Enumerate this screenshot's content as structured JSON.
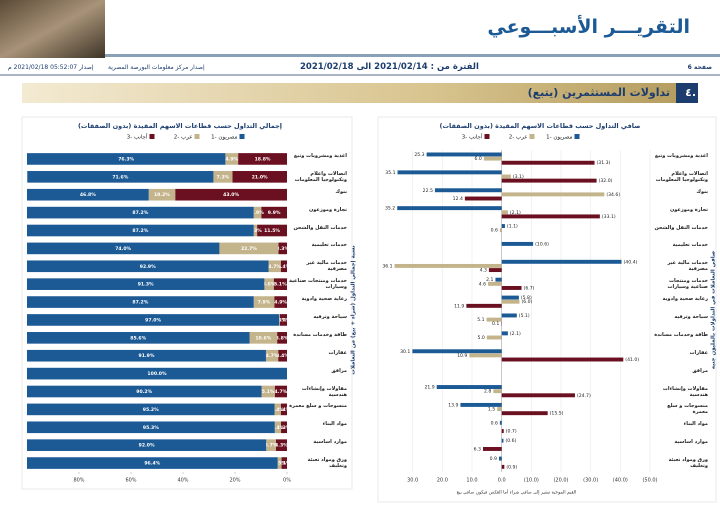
{
  "header": {
    "title": "التقريـــر الأسبـــوعي",
    "issuer": "إصدار مركز معلومات البورصة المصرية",
    "period": "الفترة من : 2021/02/14 الى 2021/02/18",
    "issued": "إصدار 05:52:07 2021/02/18 م",
    "page": "صفحة 6"
  },
  "section": {
    "number": "٤.",
    "title": "تداولات المستثمرين (يتبع)"
  },
  "chart_data": [
    {
      "type": "bar",
      "orientation": "horizontal",
      "stacked": true,
      "title": "إجمالي التداول حسب قطاعات الاسهم المقيدة (بدون الصفقات)",
      "ylabel": "نسبة إجمالي التداول (شراء + بيع) من التعاملات",
      "categories": [
        "اغذية ومشروبات وتبغ",
        "اتصالات واعلام وتكنولوجيا المعلومات",
        "بنوك",
        "تجارة وموزعون",
        "خدمات النقل والشحن",
        "خدمات تعليمية",
        "خدمات مالية غير مصرفية",
        "خدمات ومنتجات صناعية وسيارات",
        "رعاية صحية وادوية",
        "سياحة وترفيه",
        "طاقة وخدمات مساندة",
        "عقارات",
        "مرافق",
        "مقاولات وإنشاءات هندسية",
        "منسوجات و سلع معمرة",
        "مواد البناء",
        "موارد اساسية",
        "ورق ومواد تعبئة وتغليف"
      ],
      "series": [
        {
          "name": "مصريون -1",
          "color": "#1c5a96",
          "values": [
            76.3,
            71.6,
            46.8,
            87.2,
            87.2,
            74.0,
            92.9,
            91.3,
            87.2,
            97.0,
            85.6,
            91.9,
            100.0,
            90.2,
            95.2,
            95.3,
            92.0,
            96.4
          ],
          "value_labels": [
            "76.3%",
            "71.6%",
            "46.8%",
            "87.2%",
            "87.2%",
            "74.0%",
            "92.9%",
            "91.3%",
            "87.2%",
            "97.0%",
            "85.6%",
            "91.9%",
            "100.0%",
            "90.2%",
            "95.2%",
            "95.3%",
            "92.0%",
            "96.4%"
          ]
        },
        {
          "name": "عرب -2",
          "color": "#c4b48c",
          "values": [
            4.9,
            7.3,
            10.2,
            2.9,
            1.3,
            22.7,
            4.7,
            3.6,
            7.9,
            0.3,
            10.6,
            4.7,
            null,
            5.1,
            2.4,
            2.4,
            3.7,
            1.5
          ],
          "value_labels": [
            "4.9%",
            "7.3%",
            "10.2%",
            "2.9%",
            "1.3%",
            "22.7%",
            "4.7%",
            "3.6%",
            "7.9%",
            "0.3%",
            "10.6%",
            "4.7%",
            null,
            "5.1%",
            "2.4%",
            "2.4%",
            "3.7%",
            "1.5%"
          ]
        },
        {
          "name": "أجانب -3",
          "color": "#6b1020",
          "values": [
            18.8,
            21.0,
            43.0,
            9.9,
            11.5,
            3.3,
            2.4,
            5.1,
            4.9,
            2.7,
            3.8,
            3.4,
            null,
            4.7,
            2.4,
            2.3,
            4.3,
            2.1
          ],
          "value_labels": [
            "18.8%",
            "21.0%",
            "43.0%",
            "9.9%",
            "11.5%",
            "3.3%",
            "2.4%",
            "5.1%",
            "4.9%",
            "2.7%",
            "3.8%",
            "3.4%",
            null,
            "4.7%",
            "2.4%",
            "2.3%",
            "4.3%",
            "2.1%"
          ]
        }
      ],
      "xlim": [
        100,
        0
      ],
      "xticks": [
        {
          "value": 80,
          "label": "80%"
        },
        {
          "value": 60,
          "label": "60%"
        },
        {
          "value": 40,
          "label": "40%"
        },
        {
          "value": 20,
          "label": "20%"
        },
        {
          "value": 0,
          "label": "0%"
        }
      ],
      "grid": false,
      "legend": "top"
    },
    {
      "type": "bar",
      "orientation": "horizontal",
      "stacked": false,
      "title": "صافي التداول حسب قطاعات الاسهم المقيدة (بدون الصفقات)",
      "ylabel": "صافي التعاملات في التداولات بالمليون جنيه",
      "note": "القيم الموجبة تشير إلى صافي شراء أما العكس فيكون صافي بيع",
      "categories": [
        "اغذية ومشروبات وتبغ",
        "اتصالات واعلام وتكنولوجيا المعلومات",
        "بنوك",
        "تجارة وموزعون",
        "خدمات النقل والشحن",
        "خدمات تعليمية",
        "خدمات مالية غير مصرفية",
        "خدمات ومنتجات صناعية وسيارات",
        "رعاية صحية وادوية",
        "سياحة وترفيه",
        "طاقة وخدمات مساندة",
        "عقارات",
        "مرافق",
        "مقاولات وإنشاءات هندسية",
        "منسوجات و سلع معمرة",
        "مواد البناء",
        "موارد اساسية",
        "ورق ومواد تعبئة وتغليف"
      ],
      "series": [
        {
          "name": "مصريون -1",
          "color": "#1c5a96",
          "values": [
            25.3,
            35.1,
            22.5,
            35.2,
            -1.1,
            -10.6,
            -40.4,
            2.1,
            -5.8,
            -5.1,
            -2.1,
            30.1,
            null,
            21.9,
            13.9,
            0.6,
            -0.6,
            0.9
          ],
          "value_labels": [
            "25.3",
            "35.1",
            "22.5",
            "35.2",
            "(1.1)",
            "(10.6)",
            "(40.4)",
            "2.1",
            "(5.8)",
            "(5.1)",
            "(2.1)",
            "30.1",
            null,
            "21.9",
            "13.9",
            "0.6",
            "(0.6)",
            "0.9"
          ]
        },
        {
          "name": "عرب -2",
          "color": "#c4b48c",
          "values": [
            6.0,
            -3.1,
            -34.6,
            -2.1,
            0.6,
            null,
            36.1,
            4.6,
            -6.0,
            5.1,
            5.0,
            10.9,
            null,
            2.8,
            1.5,
            null,
            null,
            null
          ],
          "value_labels": [
            "6.0",
            "(3.1)",
            "(34.6)",
            "(2.1)",
            "0.6",
            null,
            "36.1",
            "4.6",
            "(6.0)",
            "5.1",
            "5.0",
            "10.9",
            null,
            "2.8",
            "1.5",
            null,
            null,
            null
          ]
        },
        {
          "name": "أجانب -3",
          "color": "#6b1020",
          "values": [
            -31.3,
            -32.0,
            12.4,
            -33.1,
            null,
            null,
            4.3,
            -6.7,
            11.9,
            0.1,
            null,
            -41.0,
            null,
            -24.7,
            -15.5,
            -0.7,
            6.3,
            -0.9
          ],
          "value_labels": [
            "(31.3)",
            "(32.0)",
            "12.4",
            "(33.1)",
            null,
            null,
            "4.3",
            "(6.7)",
            "11.9",
            "0.1",
            null,
            "(41.0)",
            null,
            "(24.7)",
            "(15.5)",
            "(0.7)",
            "6.3",
            "(0.9)"
          ]
        }
      ],
      "xlim": [
        40,
        -50
      ],
      "xticks": [
        {
          "value": 30,
          "label": "30.0"
        },
        {
          "value": 20,
          "label": "20.0"
        },
        {
          "value": 10,
          "label": "10.0"
        },
        {
          "value": 0,
          "label": "0.0"
        },
        {
          "value": -10,
          "label": "(10.0)"
        },
        {
          "value": -20,
          "label": "(20.0)"
        },
        {
          "value": -30,
          "label": "(30.0)"
        },
        {
          "value": -40,
          "label": "(40.0)"
        },
        {
          "value": -50,
          "label": "(50.0)"
        }
      ],
      "grid": true,
      "legend": "top"
    }
  ]
}
